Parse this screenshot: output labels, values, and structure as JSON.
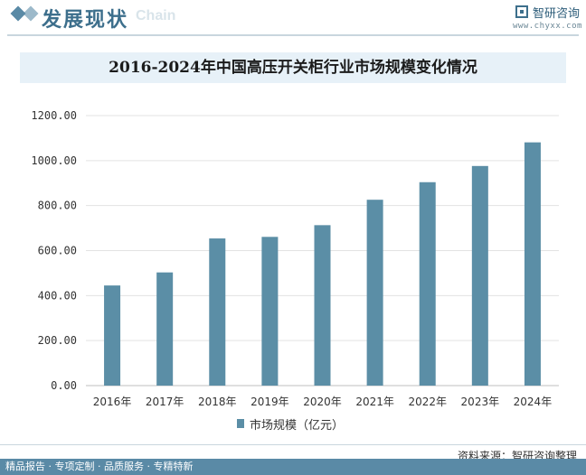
{
  "header": {
    "section_title": "发展现状",
    "section_subtitle": "Chain",
    "brand_name": "智研咨询",
    "brand_url": "www.chyxx.com"
  },
  "chart_data": {
    "type": "bar",
    "title": "2016-2024年中国高压开关柜行业市场规模变化情况",
    "categories": [
      "2016年",
      "2017年",
      "2018年",
      "2019年",
      "2020年",
      "2021年",
      "2022年",
      "2023年",
      "2024年"
    ],
    "series": [
      {
        "name": "市场规模（亿元）",
        "values": [
          445,
          503,
          654,
          661,
          713,
          826,
          904,
          976,
          1081
        ]
      }
    ],
    "y_ticks": [
      "0.00",
      "200.00",
      "400.00",
      "600.00",
      "800.00",
      "1000.00",
      "1200.00"
    ],
    "ylim": [
      0,
      1200
    ],
    "grid": true,
    "legend_position": "bottom",
    "bar_color": "#5b8ea6"
  },
  "footer": {
    "source": "资料来源：智研咨询整理",
    "slogan": "精品报告 · 专项定制 · 品质服务 · 专精特新"
  }
}
